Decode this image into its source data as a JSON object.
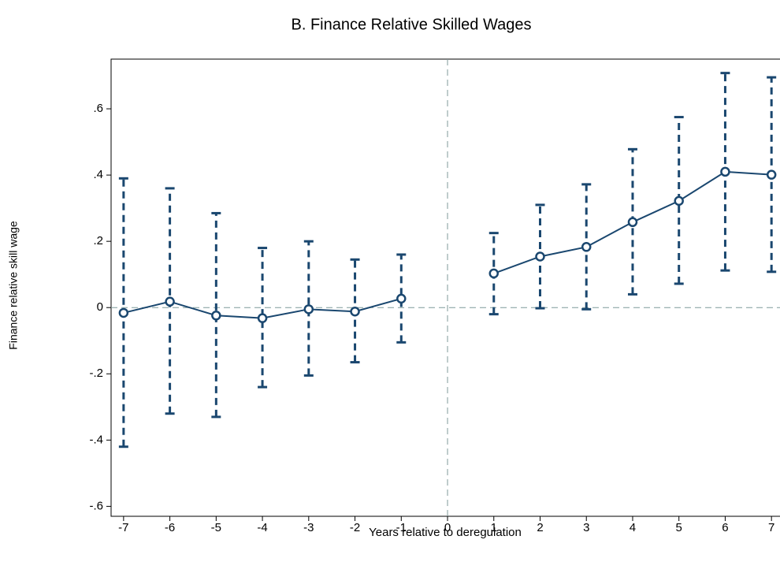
{
  "chart_data": {
    "type": "line",
    "title": "B. Finance Relative Skilled Wages",
    "xlabel": "Years relative to deregulation",
    "ylabel": "Finance relative skill wage",
    "x": [
      -7,
      -6,
      -5,
      -4,
      -3,
      -2,
      -1,
      0,
      1,
      2,
      3,
      4,
      5,
      6,
      7
    ],
    "series": [
      {
        "color": "#1a476f",
        "values": [
          -0.016,
          0.018,
          -0.024,
          -0.032,
          -0.005,
          -0.012,
          0.027,
          null,
          0.103,
          0.154,
          0.183,
          0.258,
          0.322,
          0.41,
          0.401
        ],
        "lower": [
          -0.42,
          -0.32,
          -0.33,
          -0.24,
          -0.205,
          -0.165,
          -0.105,
          null,
          -0.02,
          -0.002,
          -0.005,
          0.04,
          0.072,
          0.112,
          0.108
        ],
        "upper": [
          0.39,
          0.36,
          0.285,
          0.18,
          0.2,
          0.145,
          0.16,
          null,
          0.225,
          0.31,
          0.372,
          0.478,
          0.575,
          0.708,
          0.695
        ]
      }
    ],
    "xlim": [
      -7.27,
      7.15
    ],
    "ylim": [
      -0.63,
      0.75
    ],
    "xticks": [
      -7,
      -6,
      -5,
      -4,
      -3,
      -2,
      -1,
      0,
      1,
      2,
      3,
      4,
      5,
      6,
      7
    ],
    "yticks": [
      {
        "value": -0.6,
        "label": "-.6"
      },
      {
        "value": -0.4,
        "label": "-.4"
      },
      {
        "value": -0.2,
        "label": "-.2"
      },
      0,
      {
        "value": 0.2,
        "label": ".2"
      },
      {
        "value": 0.4,
        "label": ".4"
      },
      {
        "value": 0.6,
        "label": ".6"
      }
    ],
    "xline": 0,
    "yline": 0,
    "refline_color": "#7f9a9a"
  }
}
